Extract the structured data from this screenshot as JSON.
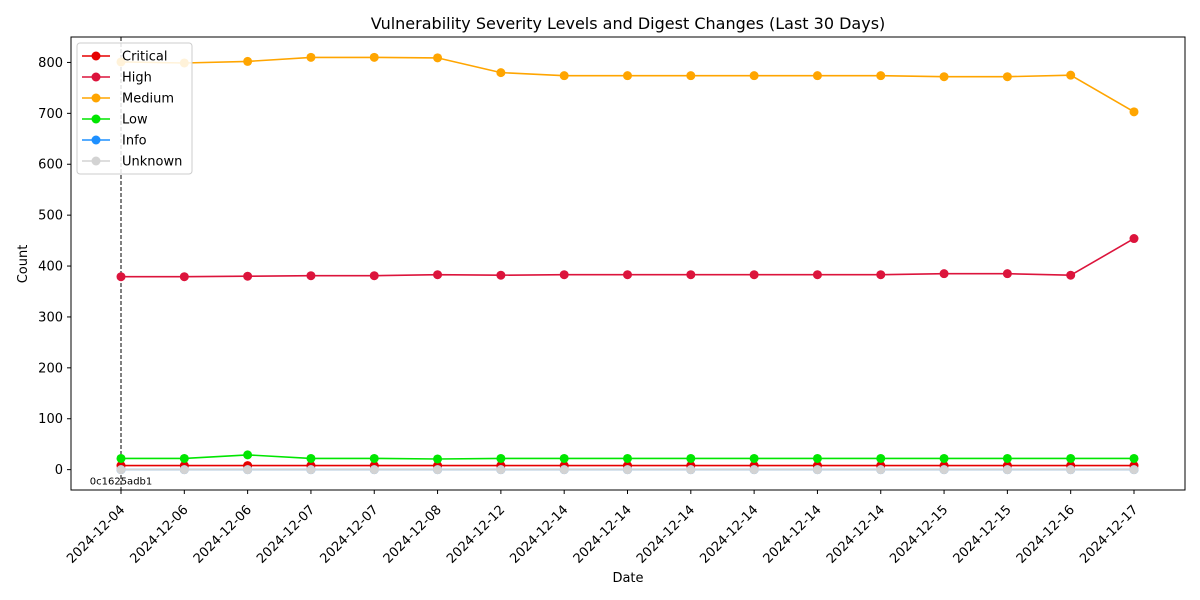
{
  "chart_data": {
    "type": "line",
    "title": "Vulnerability Severity Levels and Digest Changes (Last 30 Days)",
    "xlabel": "Date",
    "ylabel": "Count",
    "ylim": [
      -40,
      850
    ],
    "yticks": [
      0,
      100,
      200,
      300,
      400,
      500,
      600,
      700,
      800
    ],
    "categories": [
      "2024-12-04",
      "2024-12-06",
      "2024-12-06",
      "2024-12-07",
      "2024-12-07",
      "2024-12-08",
      "2024-12-12",
      "2024-12-14",
      "2024-12-14",
      "2024-12-14",
      "2024-12-14",
      "2024-12-14",
      "2024-12-14",
      "2024-12-15",
      "2024-12-15",
      "2024-12-16",
      "2024-12-17"
    ],
    "legend_position": "top-left",
    "grid": false,
    "series": [
      {
        "name": "Critical",
        "color": "#e60000",
        "values": [
          8,
          8,
          8,
          8,
          8,
          8,
          8,
          8,
          8,
          8,
          8,
          8,
          8,
          8,
          8,
          8,
          8
        ]
      },
      {
        "name": "High",
        "color": "#dc143c",
        "values": [
          379,
          379,
          380,
          381,
          381,
          383,
          382,
          383,
          383,
          383,
          383,
          383,
          383,
          385,
          385,
          382,
          454
        ]
      },
      {
        "name": "Medium",
        "color": "#ffa500",
        "values": [
          801,
          799,
          802,
          810,
          810,
          809,
          780,
          774,
          774,
          774,
          774,
          774,
          774,
          772,
          772,
          775,
          703
        ]
      },
      {
        "name": "Low",
        "color": "#00e600",
        "values": [
          22,
          22,
          29,
          22,
          22,
          21,
          22,
          22,
          22,
          22,
          22,
          22,
          22,
          22,
          22,
          22,
          22
        ]
      },
      {
        "name": "Info",
        "color": "#1e90ff",
        "values": [
          0,
          0,
          0,
          0,
          0,
          0,
          0,
          0,
          0,
          0,
          0,
          0,
          0,
          0,
          0,
          0,
          0
        ]
      },
      {
        "name": "Unknown",
        "color": "#d3d3d3",
        "values": [
          0,
          0,
          0,
          0,
          0,
          0,
          0,
          0,
          0,
          0,
          0,
          0,
          0,
          0,
          0,
          0,
          0
        ]
      }
    ],
    "annotations": [
      {
        "category_index": 0,
        "text": "0c1625adb1",
        "style": "dashed-vertical-line"
      }
    ]
  }
}
